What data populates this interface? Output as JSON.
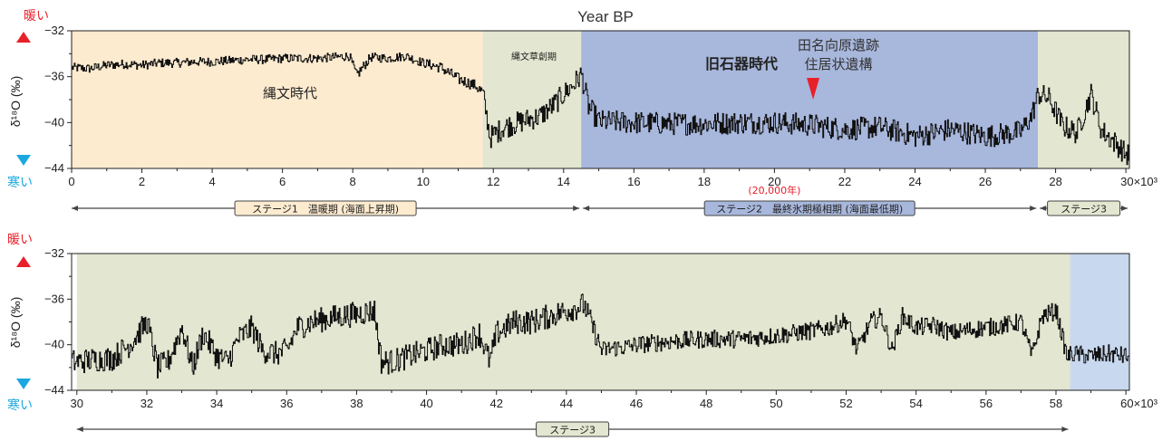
{
  "title": "Year BP",
  "warm_label": "暖い",
  "cold_label": "寒い",
  "ylabel": "δ¹⁸O (‰)",
  "colors": {
    "warm_arrow": "#e8202a",
    "cold_arrow": "#1ba8e0",
    "holocene_bg": "#fdebd0",
    "jomon_bg": "#e3e6d0",
    "paleolithic_bg": "#a8b7dc",
    "stage3_bg": "#e3e6d0",
    "stage4_bg": "#c8d8ee",
    "stage_box": "#fdebd0",
    "stage2_box": "#a8b7dc",
    "stage3_box": "#e3e6d0",
    "red_text": "#e8202a",
    "line": "#111111"
  },
  "chart_data": [
    {
      "type": "line",
      "xlabel": "Year BP",
      "ylabel": "δ¹⁸O (‰)",
      "xlim": [
        0,
        30
      ],
      "ylim": [
        -44,
        -32
      ],
      "y_reversed": true,
      "x_ticks": [
        "0",
        "2",
        "4",
        "6",
        "8",
        "10",
        "12",
        "14",
        "16",
        "18",
        "20",
        "22",
        "24",
        "26",
        "28"
      ],
      "x_tick_values": [
        0,
        2,
        4,
        6,
        8,
        10,
        12,
        14,
        16,
        18,
        20,
        22,
        24,
        26,
        28
      ],
      "x_end_tick": "30×10³",
      "y_ticks": [
        "−32",
        "−36",
        "−40",
        "−44"
      ],
      "y_tick_values": [
        -32,
        -36,
        -40,
        -44
      ],
      "x_unit": "thousand years BP",
      "series_profile_x": [
        0,
        0.5,
        1,
        1.5,
        2,
        2.5,
        3,
        3.5,
        4,
        4.5,
        5,
        5.5,
        6,
        6.5,
        7,
        7.5,
        7.9,
        8.1,
        8.5,
        9,
        9.5,
        10,
        10.5,
        11,
        11.5,
        11.7,
        11.9,
        12.3,
        12.7,
        13,
        13.3,
        13.7,
        14,
        14.3,
        14.5,
        14.7,
        15,
        16,
        17,
        18,
        19,
        20,
        21,
        22,
        23,
        24,
        25,
        26,
        27,
        27.3,
        27.5,
        27.8,
        28.2,
        28.6,
        29,
        29.3,
        29.7,
        30
      ],
      "series_profile_y": [
        -35.2,
        -35.3,
        -35.0,
        -34.9,
        -35.0,
        -34.8,
        -34.8,
        -34.7,
        -34.7,
        -34.6,
        -34.5,
        -34.5,
        -34.4,
        -34.4,
        -34.4,
        -34.3,
        -34.2,
        -35.9,
        -34.3,
        -34.4,
        -34.2,
        -34.8,
        -35.2,
        -36.2,
        -36.8,
        -37.5,
        -41.3,
        -40.4,
        -40.0,
        -39.7,
        -39.5,
        -38.5,
        -37.5,
        -36.6,
        -35.8,
        -38.6,
        -39.9,
        -40.0,
        -40.1,
        -40.1,
        -40.0,
        -40.0,
        -40.2,
        -40.6,
        -40.4,
        -41.2,
        -40.6,
        -41.2,
        -40.8,
        -39.5,
        -37.5,
        -37.9,
        -40.3,
        -40.9,
        -37.5,
        -40.7,
        -41.8,
        -42.8
      ],
      "series_noise": [
        0.4,
        0.4,
        0.4,
        0.4,
        0.4,
        0.4,
        0.4,
        0.4,
        0.4,
        0.4,
        0.4,
        0.4,
        0.4,
        0.4,
        0.4,
        0.4,
        0.4,
        0.5,
        0.4,
        0.4,
        0.4,
        0.4,
        0.5,
        0.5,
        0.5,
        0.8,
        1.0,
        1.0,
        1.0,
        1.0,
        1.0,
        1.0,
        1.0,
        1.0,
        1.0,
        1.0,
        1.0,
        1.0,
        1.0,
        1.0,
        1.0,
        1.0,
        1.0,
        1.0,
        1.0,
        1.0,
        1.0,
        1.0,
        1.0,
        1.0,
        1.0,
        1.0,
        1.0,
        1.0,
        1.0,
        1.0,
        1.0,
        1.0
      ],
      "periods": [
        {
          "label": "縄文時代",
          "start": 0,
          "end": 11.7,
          "color_key": "holocene_bg"
        },
        {
          "label": "縄文草創期",
          "start": 11.7,
          "end": 14.5,
          "color_key": "jomon_bg"
        },
        {
          "label": "旧石器時代",
          "start": 14.5,
          "end": 27.5,
          "color_key": "paleolithic_bg"
        },
        {
          "label": "",
          "start": 27.5,
          "end": 30.1,
          "color_key": "stage3_bg"
        }
      ],
      "annotation": {
        "label_line1": "田名向原遺跡",
        "label_line2": "住居状遺構",
        "x": 21.1,
        "note": "(20,000年)"
      },
      "stages": [
        {
          "label": "ステージ1　温暖期 (海面上昇期)",
          "start": 0,
          "end": 14.5
        },
        {
          "label": "ステージ2　最終氷期極相期 (海面最低期)",
          "start": 14.5,
          "end": 27.5
        },
        {
          "label": "ステージ3",
          "start": 27.5,
          "end": 30.1
        }
      ]
    },
    {
      "type": "line",
      "xlabel": "Year BP",
      "ylabel": "δ¹⁸O (‰)",
      "xlim": [
        30,
        60
      ],
      "ylim": [
        -44,
        -32
      ],
      "y_reversed": true,
      "x_ticks": [
        "30",
        "32",
        "34",
        "36",
        "38",
        "40",
        "42",
        "44",
        "46",
        "48",
        "50",
        "52",
        "54",
        "56",
        "58"
      ],
      "x_tick_values": [
        30,
        32,
        34,
        36,
        38,
        40,
        42,
        44,
        46,
        48,
        50,
        52,
        54,
        56,
        58
      ],
      "x_end_tick": "60×10³",
      "y_ticks": [
        "−32",
        "−36",
        "−40",
        "−44"
      ],
      "y_tick_values": [
        -32,
        -36,
        -40,
        -44
      ],
      "x_unit": "thousand years BP",
      "series_profile_x": [
        30,
        30.5,
        31,
        31.5,
        32,
        32.3,
        32.6,
        33,
        33.3,
        33.6,
        34,
        34.3,
        34.6,
        35,
        35.3,
        35.7,
        36,
        36.3,
        36.7,
        37,
        37.5,
        38,
        38.5,
        38.7,
        39,
        39.5,
        40,
        40.5,
        41,
        41.5,
        41.8,
        42,
        42.5,
        43,
        43.5,
        44,
        44.5,
        45,
        45.3,
        45.7,
        46,
        47,
        48,
        49,
        50,
        51,
        51.5,
        52,
        52.3,
        52.7,
        53,
        53.3,
        53.6,
        54,
        54.5,
        55,
        55.5,
        56,
        56.5,
        57,
        57.3,
        57.6,
        58,
        58.3,
        58.5,
        59,
        59.5,
        60
      ],
      "series_profile_y": [
        -41.5,
        -41.3,
        -41.2,
        -40.0,
        -38.0,
        -42.0,
        -41.5,
        -38.5,
        -42.0,
        -39.0,
        -41.0,
        -41.5,
        -39.5,
        -38.5,
        -40.5,
        -40.8,
        -40.5,
        -38.5,
        -38.0,
        -37.8,
        -37.5,
        -37.3,
        -37.0,
        -41.5,
        -41.5,
        -41.0,
        -40.5,
        -40.0,
        -40.0,
        -39.0,
        -41.5,
        -39.0,
        -38.0,
        -38.0,
        -37.5,
        -37.0,
        -36.5,
        -40.5,
        -40.3,
        -40.2,
        -40.0,
        -39.7,
        -39.5,
        -39.5,
        -39.2,
        -38.8,
        -38.5,
        -37.8,
        -40.5,
        -38.0,
        -37.5,
        -40.5,
        -37.5,
        -38.5,
        -38.3,
        -39.0,
        -38.7,
        -38.5,
        -38.3,
        -38.0,
        -41.0,
        -37.5,
        -37.0,
        -41.0,
        -40.8,
        -41.0,
        -40.8,
        -41.0
      ],
      "series_noise": [
        1.1,
        1.1,
        1.1,
        1.1,
        1.1,
        1.1,
        1.1,
        1.1,
        1.1,
        1.1,
        1.1,
        1.1,
        1.1,
        1.1,
        1.1,
        1.1,
        1.1,
        1.1,
        1.1,
        1.1,
        1.1,
        1.1,
        1.1,
        1.1,
        1.1,
        1.1,
        1.1,
        1.1,
        1.1,
        1.1,
        1.1,
        1.1,
        1.1,
        1.1,
        1.1,
        1.1,
        1.1,
        0.8,
        0.8,
        0.8,
        0.8,
        0.8,
        0.8,
        0.8,
        0.8,
        0.8,
        0.8,
        0.8,
        0.8,
        0.8,
        0.8,
        0.8,
        0.8,
        0.8,
        0.8,
        0.8,
        0.8,
        0.8,
        0.8,
        0.8,
        0.8,
        0.8,
        0.8,
        0.8,
        0.8,
        0.8,
        0.8,
        0.8
      ],
      "periods": [
        {
          "label": "",
          "start": 30,
          "end": 58.4,
          "color_key": "stage3_bg"
        },
        {
          "label": "",
          "start": 58.4,
          "end": 60.1,
          "color_key": "stage4_bg"
        }
      ],
      "stages": [
        {
          "label": "ステージ3",
          "start": 30,
          "end": 58.4
        }
      ]
    }
  ]
}
